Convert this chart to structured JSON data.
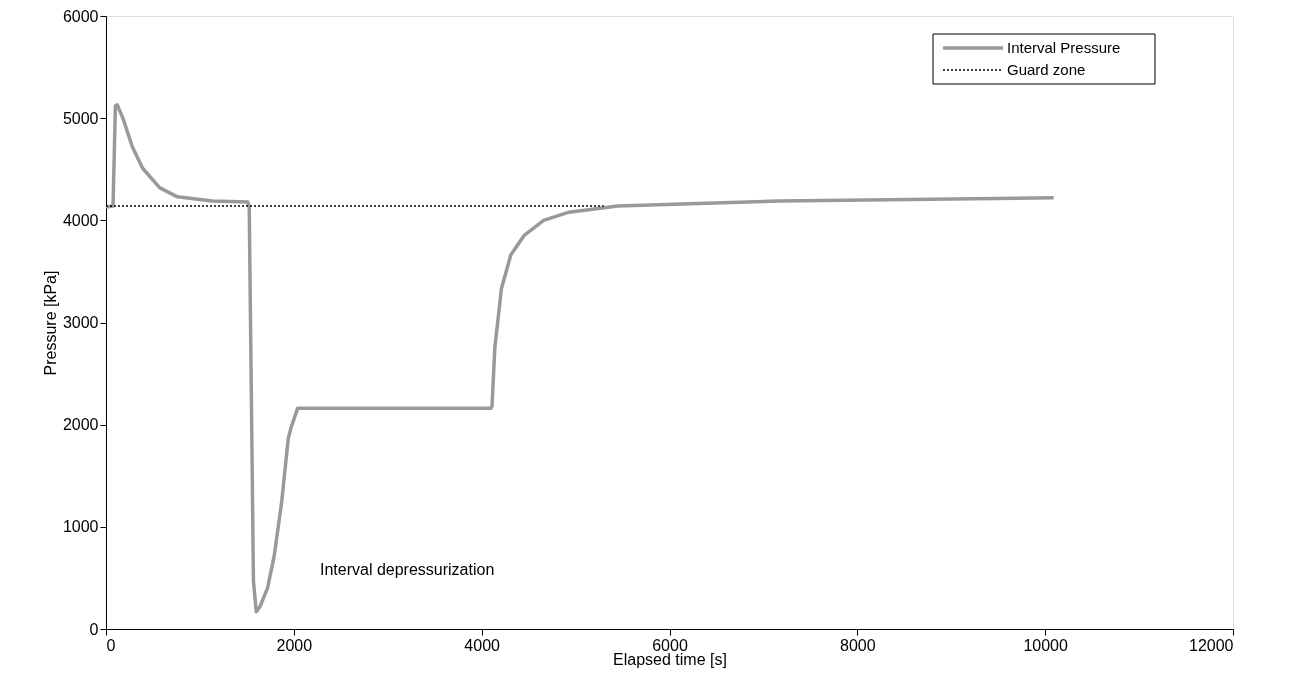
{
  "chart_data": {
    "type": "line",
    "xlabel": "Elapsed time  [s]",
    "ylabel": "Pressure [kPa]",
    "xlim": [
      0,
      12000
    ],
    "ylim": [
      0,
      6000
    ],
    "xticks": [
      0,
      2000,
      4000,
      6000,
      8000,
      10000,
      12000
    ],
    "yticks": [
      0,
      1000,
      2000,
      3000,
      4000,
      5000,
      6000
    ],
    "grid": false,
    "legend": "top right",
    "marker": "none",
    "series": [
      {
        "name": "Interval Pressure",
        "color": "#999999",
        "line_style": "solid",
        "x": [
          0,
          75,
          100,
          120,
          180,
          280,
          390,
          570,
          760,
          1130,
          1510,
          1525,
          1570,
          1600,
          1640,
          1720,
          1790,
          1870,
          1940,
          1970,
          2040,
          4100,
          4110,
          4140,
          4210,
          4310,
          4450,
          4660,
          4930,
          5450,
          6480,
          7170,
          10090
        ],
        "values": [
          4130,
          4140,
          5120,
          5130,
          5000,
          4720,
          4510,
          4320,
          4230,
          4190,
          4180,
          4130,
          470,
          170,
          220,
          400,
          710,
          1240,
          1860,
          1970,
          2160,
          2160,
          2180,
          2750,
          3330,
          3660,
          3850,
          4000,
          4080,
          4140,
          4170,
          4190,
          4220
        ]
      },
      {
        "name": "Guard zone",
        "color": "#000000",
        "line_style": "dotted",
        "x": [
          0,
          5300
        ],
        "values": [
          4140,
          4140
        ]
      }
    ],
    "annotations": [
      "Interval depressurization"
    ]
  }
}
